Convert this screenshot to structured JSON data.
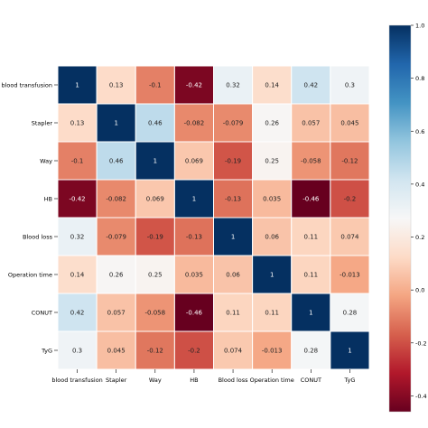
{
  "chart_data": {
    "type": "heatmap",
    "title": "",
    "xlabel": "",
    "ylabel": "",
    "row_labels": [
      "blood transfusion",
      "Stapler",
      "Way",
      "HB",
      "Blood loss",
      "Operation time",
      "CONUT",
      "TyG"
    ],
    "col_labels": [
      "blood transfusion",
      "Stapler",
      "Way",
      "HB",
      "Blood loss",
      "Operation time",
      "CONUT",
      "TyG"
    ],
    "values": [
      [
        1,
        0.13,
        -0.1,
        -0.42,
        0.32,
        0.14,
        0.42,
        0.3
      ],
      [
        0.13,
        1,
        0.46,
        -0.082,
        -0.079,
        0.26,
        0.057,
        0.045
      ],
      [
        -0.1,
        0.46,
        1,
        0.069,
        -0.19,
        0.25,
        -0.058,
        -0.12
      ],
      [
        -0.42,
        -0.082,
        0.069,
        1,
        -0.13,
        0.035,
        -0.46,
        -0.2
      ],
      [
        0.32,
        -0.079,
        -0.19,
        -0.13,
        1,
        0.06,
        0.11,
        0.074
      ],
      [
        0.14,
        0.26,
        0.25,
        0.035,
        0.06,
        1,
        0.11,
        -0.013
      ],
      [
        0.42,
        0.057,
        -0.058,
        -0.46,
        0.11,
        0.11,
        1,
        0.28
      ],
      [
        0.3,
        0.045,
        -0.12,
        -0.2,
        0.074,
        -0.013,
        0.28,
        1
      ]
    ],
    "cell_labels": [
      [
        "1",
        "0.13",
        "-0.1",
        "-0.42",
        "0.32",
        "0.14",
        "0.42",
        "0.3"
      ],
      [
        "0.13",
        "1",
        "0.46",
        "-0.082",
        "-0.079",
        "0.26",
        "0.057",
        "0.045"
      ],
      [
        "-0.1",
        "0.46",
        "1",
        "0.069",
        "-0.19",
        "0.25",
        "-0.058",
        "-0.12"
      ],
      [
        "-0.42",
        "-0.082",
        "0.069",
        "1",
        "-0.13",
        "0.035",
        "-0.46",
        "-0.2"
      ],
      [
        "0.32",
        "-0.079",
        "-0.19",
        "-0.13",
        "1",
        "0.06",
        "0.11",
        "0.074"
      ],
      [
        "0.14",
        "0.26",
        "0.25",
        "0.035",
        "0.06",
        "1",
        "0.11",
        "-0.013"
      ],
      [
        "0.42",
        "0.057",
        "-0.058",
        "-0.46",
        "0.11",
        "0.11",
        "1",
        "0.28"
      ],
      [
        "0.3",
        "0.045",
        "-0.12",
        "-0.2",
        "0.074",
        "-0.013",
        "0.28",
        "1"
      ]
    ],
    "colormap": "RdBu",
    "color_range": [
      -0.46,
      1
    ],
    "colorbar": {
      "ticks": [
        -0.4,
        -0.2,
        0.0,
        0.2,
        0.4,
        0.6,
        0.8,
        1.0
      ],
      "tick_labels": [
        "-0.4",
        "-0.2",
        "0.0",
        "0.2",
        "0.4",
        "0.6",
        "0.8",
        "1.0"
      ],
      "position": "right"
    },
    "colors": [
      "#67001f",
      "#b2182b",
      "#d6604d",
      "#f4a582",
      "#fddbc7",
      "#f7f7f7",
      "#d1e5f0",
      "#92c5de",
      "#4393c3",
      "#2166ac",
      "#053061"
    ],
    "grid": false
  }
}
